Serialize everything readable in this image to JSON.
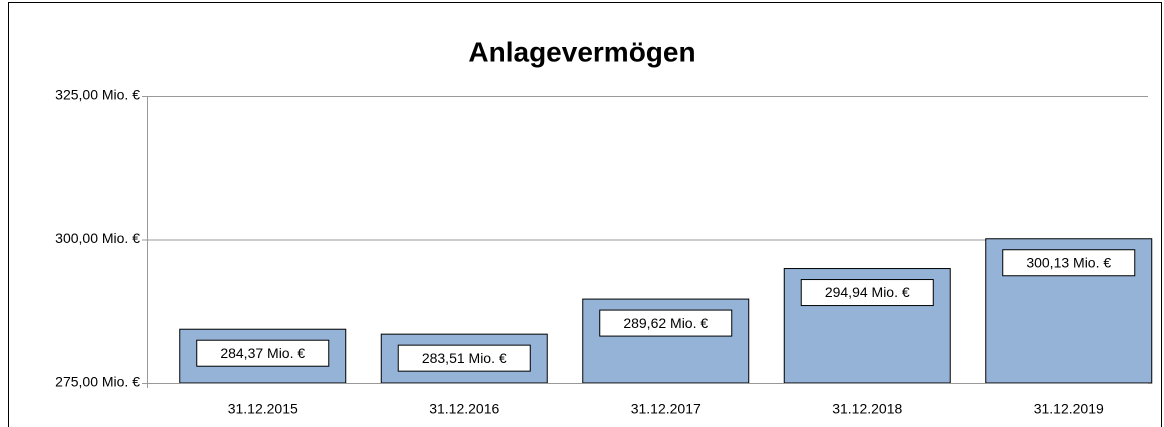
{
  "chart_data": {
    "type": "bar",
    "title": "Anlagevermögen",
    "categories": [
      "31.12.2015",
      "31.12.2016",
      "31.12.2017",
      "31.12.2018",
      "31.12.2019"
    ],
    "values": [
      284.37,
      283.51,
      289.62,
      294.94,
      300.13
    ],
    "value_labels": [
      "284,37 Mio. €",
      "283,51 Mio. €",
      "289,62 Mio. €",
      "294,94 Mio. €",
      "300,13 Mio. €"
    ],
    "color": "#95b3d7",
    "ylim": [
      275,
      325
    ],
    "yticks": [
      {
        "value": 275,
        "label": "275,00 Mio. €"
      },
      {
        "value": 300,
        "label": "300,00 Mio. €"
      },
      {
        "value": 325,
        "label": "325,00 Mio. €"
      }
    ],
    "grid": true
  }
}
